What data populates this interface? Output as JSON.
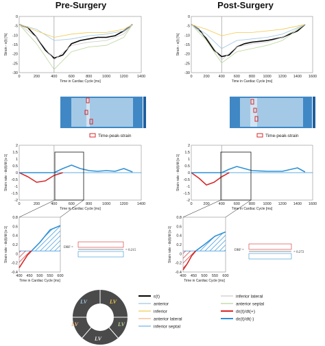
{
  "figure": {
    "title_left": "Pre-Surgery",
    "title_right": "Post-Surgery",
    "time_peak_label": "Time-peak-strain",
    "drf_pre": "= 0.215",
    "drf_post": "= 0.272",
    "drf_label": "DRF =",
    "ring_center": "",
    "ring_segments": [
      "LV",
      "LV",
      "LV",
      "LV",
      "LV"
    ],
    "legend": [
      {
        "label": "ε(t)",
        "color": "#000000",
        "width": 2
      },
      {
        "label": "anterior",
        "color": "#9dc6e0",
        "width": 1
      },
      {
        "label": "inferior",
        "color": "#f2c94c",
        "width": 1
      },
      {
        "label": "anterior lateral",
        "color": "#f2b885",
        "width": 1
      },
      {
        "label": "inferior septal",
        "color": "#6fb7e8",
        "width": 1
      },
      {
        "label": "inferior lateral",
        "color": "#c9c9c9",
        "width": 1
      },
      {
        "label": "anterior septal",
        "color": "#b8d59a",
        "width": 1
      },
      {
        "label": "dε(t)/dt(+)",
        "color": "#d62728",
        "width": 2
      },
      {
        "label": "dε(t)/dt(-)",
        "color": "#2e90d6",
        "width": 2
      }
    ],
    "colors": {
      "strain": "#000000",
      "sr_pos": "#d62728",
      "sr_neg": "#2e90d6",
      "hatch": "#2e90d6",
      "heat_dark": "#1f5f9e",
      "heat_light": "#cfe6f3"
    }
  },
  "chart_data": [
    {
      "panel": "pre-strain",
      "type": "line",
      "xlabel": "Time in Cardiac Cycle [ms]",
      "ylabel": "Strain - ε(t) [%]",
      "xlim": [
        0,
        1400
      ],
      "ylim": [
        -30,
        5
      ],
      "xticks": [
        "0",
        "200",
        "400",
        "600",
        "800",
        "1000",
        "1200",
        "1400"
      ],
      "yticks": [
        "0",
        "-5",
        "-10",
        "-15",
        "-20",
        "-25",
        "-30"
      ],
      "marker_x": 400,
      "series": [
        {
          "name": "ε(t)",
          "x": [
            0,
            100,
            200,
            300,
            400,
            500,
            600,
            700,
            800,
            900,
            1000,
            1100,
            1200,
            1300
          ],
          "y": [
            0,
            -2,
            -8,
            -16,
            -21,
            -19,
            -12,
            -10,
            -9,
            -8,
            -8,
            -7,
            -4,
            0
          ]
        },
        {
          "name": "anterior",
          "x": [
            0,
            200,
            400,
            600,
            800,
            1000,
            1200,
            1300
          ],
          "y": [
            0,
            -3,
            -10,
            -9,
            -7,
            -6,
            -4,
            0
          ]
        },
        {
          "name": "inferior",
          "x": [
            0,
            200,
            400,
            600,
            800,
            1000,
            1200,
            1300
          ],
          "y": [
            0,
            -4,
            -8,
            -6,
            -5,
            -5,
            -3,
            0
          ]
        },
        {
          "name": "anterior septal",
          "x": [
            0,
            200,
            400,
            600,
            800,
            1000,
            1200,
            1300
          ],
          "y": [
            0,
            -12,
            -28,
            -17,
            -14,
            -13,
            -8,
            0
          ]
        },
        {
          "name": "inferior lateral",
          "x": [
            0,
            200,
            400,
            600,
            800,
            1000,
            1200,
            1300
          ],
          "y": [
            0,
            -8,
            -22,
            -13,
            -11,
            -10,
            -6,
            0
          ]
        }
      ]
    },
    {
      "panel": "post-strain",
      "type": "line",
      "xlabel": "Time in Cardiac Cycle [ms]",
      "ylabel": "Strain - ε(t) [%]",
      "xlim": [
        0,
        1600
      ],
      "ylim": [
        -30,
        5
      ],
      "xticks": [
        "0",
        "200",
        "400",
        "600",
        "800",
        "1000",
        "1200",
        "1400",
        "1600"
      ],
      "yticks": [
        "0",
        "-5",
        "-10",
        "-15",
        "-20",
        "-25",
        "-30"
      ],
      "marker_x": 400,
      "series": [
        {
          "name": "ε(t)",
          "x": [
            0,
            100,
            200,
            300,
            400,
            500,
            600,
            700,
            800,
            1000,
            1200,
            1400,
            1500
          ],
          "y": [
            0,
            -3,
            -9,
            -16,
            -20,
            -19,
            -14,
            -12,
            -11,
            -10,
            -8,
            -4,
            0
          ]
        },
        {
          "name": "anterior",
          "x": [
            0,
            200,
            400,
            600,
            800,
            1000,
            1200,
            1500
          ],
          "y": [
            0,
            -6,
            -15,
            -10,
            -9,
            -8,
            -6,
            0
          ]
        },
        {
          "name": "inferior",
          "x": [
            0,
            200,
            400,
            600,
            800,
            1000,
            1200,
            1500
          ],
          "y": [
            0,
            -3,
            -7,
            -5,
            -5,
            -4,
            -3,
            0
          ]
        },
        {
          "name": "anterior septal",
          "x": [
            0,
            200,
            400,
            600,
            800,
            1000,
            1200,
            1500
          ],
          "y": [
            0,
            -10,
            -24,
            -17,
            -15,
            -13,
            -10,
            0
          ]
        },
        {
          "name": "inferior lateral",
          "x": [
            0,
            200,
            400,
            600,
            800,
            1000,
            1200,
            1500
          ],
          "y": [
            0,
            -8,
            -22,
            -14,
            -12,
            -11,
            -8,
            0
          ]
        }
      ]
    },
    {
      "panel": "pre-strainrate",
      "type": "line",
      "xlabel": "Time in Cardiac Cycle [ms]",
      "ylabel": "Strain rate - dε(t)/dt [s-1]",
      "xlim": [
        0,
        1400
      ],
      "ylim": [
        -2,
        2
      ],
      "xticks": [
        "0",
        "200",
        "400",
        "600",
        "800",
        "1000",
        "1200",
        "1400"
      ],
      "yticks": [
        "2",
        "1.5",
        "1",
        "0.5",
        "0",
        "-0.5",
        "-1",
        "-1.5",
        "-2"
      ],
      "marker_x": 400,
      "series": [
        {
          "name": "dε(t)/dt(+)",
          "x": [
            0,
            100,
            200,
            300,
            400,
            500
          ],
          "y": [
            0,
            -0.3,
            -0.7,
            -0.6,
            -0.2,
            0
          ]
        },
        {
          "name": "dε(t)/dt(-)",
          "x": [
            0,
            400,
            500,
            600,
            700,
            800,
            900,
            1000,
            1100,
            1200,
            1300
          ],
          "y": [
            0,
            0,
            0.3,
            0.55,
            0.3,
            0.15,
            0.1,
            0.15,
            0.1,
            0.3,
            0.05
          ]
        }
      ]
    },
    {
      "panel": "post-strainrate",
      "type": "line",
      "xlabel": "Time in Cardiac Cycle [ms]",
      "ylabel": "Strain rate - dε(t)/dt [s-1]",
      "xlim": [
        0,
        1600
      ],
      "ylim": [
        -2,
        2
      ],
      "xticks": [
        "0",
        "200",
        "400",
        "600",
        "800",
        "1000",
        "1200",
        "1400",
        "1600"
      ],
      "yticks": [
        "2",
        "1.5",
        "1",
        "0.5",
        "0",
        "-0.5",
        "-1",
        "-1.5",
        "-2"
      ],
      "marker_x": 400,
      "series": [
        {
          "name": "dε(t)/dt(+)",
          "x": [
            0,
            100,
            200,
            300,
            400,
            500
          ],
          "y": [
            0,
            -0.4,
            -0.9,
            -0.7,
            -0.3,
            0
          ]
        },
        {
          "name": "dε(t)/dt(-)",
          "x": [
            0,
            400,
            500,
            600,
            700,
            800,
            1000,
            1200,
            1400,
            1500
          ],
          "y": [
            0,
            0,
            0.25,
            0.45,
            0.3,
            0.15,
            0.1,
            0.1,
            0.35,
            0.05
          ]
        }
      ]
    },
    {
      "panel": "pre-zoom",
      "type": "area",
      "xlabel": "Time in Cardiac Cycle [ms]",
      "ylabel": "Strain rate - dε(t)/dt [s-1]",
      "xlim": [
        400,
        600
      ],
      "ylim": [
        -0.5,
        0.8
      ],
      "xticks": [
        "400",
        "450",
        "500",
        "550",
        "600"
      ],
      "yticks": [
        "0.8",
        "0.6",
        "0.4",
        "0.2",
        "0",
        "-0.2",
        "-0.4"
      ],
      "series": [
        {
          "name": "dε(t)/dt(+)",
          "x": [
            400,
            420,
            440,
            460
          ],
          "y": [
            -0.4,
            -0.25,
            -0.1,
            0
          ]
        },
        {
          "name": "dε(t)/dt(-)",
          "x": [
            460,
            500,
            550,
            600
          ],
          "y": [
            0,
            0.2,
            0.5,
            0.6
          ]
        }
      ]
    },
    {
      "panel": "post-zoom",
      "type": "area",
      "xlabel": "Time in Cardiac Cycle [ms]",
      "ylabel": "Strain rate - dε(t)/dt [s-1]",
      "xlim": [
        400,
        600
      ],
      "ylim": [
        -0.5,
        0.8
      ],
      "xticks": [
        "400",
        "450",
        "500",
        "550",
        "600"
      ],
      "yticks": [
        "0.8",
        "0.6",
        "0.4",
        "0.2",
        "0",
        "-0.2",
        "-0.4"
      ],
      "series": [
        {
          "name": "dε(t)/dt(+)",
          "x": [
            400,
            420,
            440,
            460
          ],
          "y": [
            -0.45,
            -0.3,
            -0.12,
            0
          ]
        },
        {
          "name": "dε(t)/dt(-)",
          "x": [
            460,
            500,
            550,
            600
          ],
          "y": [
            0,
            0.15,
            0.35,
            0.45
          ]
        }
      ]
    }
  ]
}
